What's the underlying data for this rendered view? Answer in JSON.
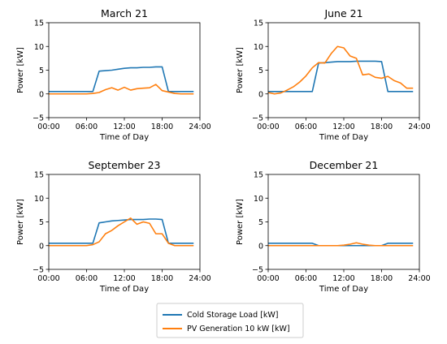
{
  "colors": {
    "load": "#1f77b4",
    "pv": "#ff7f0e"
  },
  "legend": {
    "entries": [
      "Cold Storage  Load [kW]",
      "PV Generation 10 kW [kW]"
    ],
    "placement": "bottom-center"
  },
  "chart_data": [
    {
      "type": "line",
      "title": "March 21",
      "xlabel": "Time of Day",
      "ylabel": "Power [kW]",
      "xlim": [
        0,
        24
      ],
      "ylim": [
        -5,
        15
      ],
      "xticks": [
        0,
        6,
        12,
        18,
        24
      ],
      "xtick_labels": [
        "00:00",
        "06:00",
        "12:00",
        "18:00",
        "24:00"
      ],
      "yticks": [
        -5,
        0,
        5,
        10,
        15
      ],
      "ytick_labels": [
        "−5",
        "0",
        "5",
        "10",
        "15"
      ],
      "x": [
        0,
        1,
        2,
        3,
        4,
        5,
        6,
        7,
        8,
        9,
        10,
        11,
        12,
        13,
        14,
        15,
        16,
        17,
        18,
        19,
        20,
        21,
        22,
        23
      ],
      "series": [
        {
          "key": "load",
          "values": [
            0.5,
            0.5,
            0.5,
            0.5,
            0.5,
            0.5,
            0.5,
            0.5,
            4.8,
            4.9,
            5.0,
            5.2,
            5.4,
            5.5,
            5.5,
            5.6,
            5.6,
            5.7,
            5.7,
            0.5,
            0.5,
            0.5,
            0.5,
            0.5
          ]
        },
        {
          "key": "pv",
          "values": [
            0,
            0,
            0,
            0,
            0,
            0,
            0,
            0.1,
            0.3,
            0.9,
            1.3,
            0.8,
            1.4,
            0.8,
            1.1,
            1.2,
            1.3,
            2.0,
            0.7,
            0.4,
            0.1,
            0,
            0,
            0
          ]
        }
      ]
    },
    {
      "type": "line",
      "title": "June 21",
      "xlabel": "Time of Day",
      "ylabel": "Power [kW]",
      "xlim": [
        0,
        24
      ],
      "ylim": [
        -5,
        15
      ],
      "xticks": [
        0,
        6,
        12,
        18,
        24
      ],
      "xtick_labels": [
        "00:00",
        "06:00",
        "12:00",
        "18:00",
        "24:00"
      ],
      "yticks": [
        -5,
        0,
        5,
        10,
        15
      ],
      "ytick_labels": [
        "−5",
        "0",
        "5",
        "10",
        "15"
      ],
      "x": [
        0,
        1,
        2,
        3,
        4,
        5,
        6,
        7,
        8,
        9,
        10,
        11,
        12,
        13,
        14,
        15,
        16,
        17,
        18,
        19,
        20,
        21,
        22,
        23
      ],
      "series": [
        {
          "key": "load",
          "values": [
            0.5,
            0.5,
            0.5,
            0.5,
            0.5,
            0.5,
            0.5,
            0.5,
            6.5,
            6.6,
            6.7,
            6.8,
            6.8,
            6.8,
            6.9,
            6.9,
            6.9,
            6.9,
            6.8,
            0.5,
            0.5,
            0.5,
            0.5,
            0.5
          ]
        },
        {
          "key": "pv",
          "values": [
            0.3,
            0,
            0.2,
            0.8,
            1.5,
            2.5,
            3.8,
            5.5,
            6.6,
            6.5,
            8.5,
            10.0,
            9.7,
            8.0,
            7.5,
            4.0,
            4.2,
            3.5,
            3.3,
            3.7,
            2.8,
            2.3,
            1.2,
            1.2
          ]
        }
      ]
    },
    {
      "type": "line",
      "title": "September 23",
      "xlabel": "Time of Day",
      "ylabel": "Power [kW]",
      "xlim": [
        0,
        24
      ],
      "ylim": [
        -5,
        15
      ],
      "xticks": [
        0,
        6,
        12,
        18,
        24
      ],
      "xtick_labels": [
        "00:00",
        "06:00",
        "12:00",
        "18:00",
        "24:00"
      ],
      "yticks": [
        -5,
        0,
        5,
        10,
        15
      ],
      "ytick_labels": [
        "−5",
        "0",
        "5",
        "10",
        "15"
      ],
      "x": [
        0,
        1,
        2,
        3,
        4,
        5,
        6,
        7,
        8,
        9,
        10,
        11,
        12,
        13,
        14,
        15,
        16,
        17,
        18,
        19,
        20,
        21,
        22,
        23
      ],
      "series": [
        {
          "key": "load",
          "values": [
            0.5,
            0.5,
            0.5,
            0.5,
            0.5,
            0.5,
            0.5,
            0.5,
            4.8,
            5.0,
            5.2,
            5.3,
            5.4,
            5.5,
            5.5,
            5.5,
            5.6,
            5.6,
            5.5,
            0.5,
            0.5,
            0.5,
            0.5,
            0.5
          ]
        },
        {
          "key": "pv",
          "values": [
            0,
            0,
            0,
            0,
            0,
            0,
            0,
            0.2,
            0.8,
            2.5,
            3.2,
            4.2,
            5.0,
            5.8,
            4.5,
            5.0,
            4.7,
            2.5,
            2.5,
            0.5,
            0,
            0,
            0,
            0
          ]
        }
      ]
    },
    {
      "type": "line",
      "title": "December 21",
      "xlabel": "Time of Day",
      "ylabel": "Power [kW]",
      "xlim": [
        0,
        24
      ],
      "ylim": [
        -5,
        15
      ],
      "xticks": [
        0,
        6,
        12,
        18,
        24
      ],
      "xtick_labels": [
        "00:00",
        "06:00",
        "12:00",
        "18:00",
        "24:00"
      ],
      "yticks": [
        -5,
        0,
        5,
        10,
        15
      ],
      "ytick_labels": [
        "−5",
        "0",
        "5",
        "10",
        "15"
      ],
      "x": [
        0,
        1,
        2,
        3,
        4,
        5,
        6,
        7,
        8,
        9,
        10,
        11,
        12,
        13,
        14,
        15,
        16,
        17,
        18,
        19,
        20,
        21,
        22,
        23
      ],
      "series": [
        {
          "key": "load",
          "values": [
            0.5,
            0.5,
            0.5,
            0.5,
            0.5,
            0.5,
            0.5,
            0.5,
            0,
            0,
            0,
            0,
            0,
            0,
            0,
            0,
            0,
            0,
            0,
            0.5,
            0.5,
            0.5,
            0.5,
            0.5
          ]
        },
        {
          "key": "pv",
          "values": [
            0,
            0,
            0,
            0,
            0,
            0,
            0,
            0,
            0,
            0,
            0,
            0,
            0.1,
            0.3,
            0.6,
            0.3,
            0.1,
            0,
            0,
            0,
            0,
            0,
            0,
            0
          ]
        }
      ]
    }
  ]
}
